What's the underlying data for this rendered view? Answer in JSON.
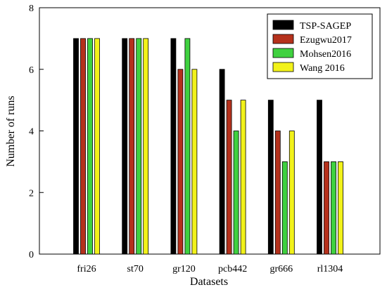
{
  "chart_data": {
    "type": "bar",
    "title": "",
    "xlabel": "Datasets",
    "ylabel": "Number of runs",
    "ylim": [
      0,
      8
    ],
    "yticks": [
      0,
      2,
      4,
      6,
      8
    ],
    "grid": false,
    "legend_position": "top-right",
    "categories": [
      "fri26",
      "st70",
      "gr120",
      "pcb442",
      "gr666",
      "rl1304"
    ],
    "series": [
      {
        "name": "TSP-SAGEP",
        "color": "#000000",
        "values": [
          7,
          7,
          7,
          6,
          5,
          5
        ]
      },
      {
        "name": "Ezugwu2017",
        "color": "#b5311c",
        "values": [
          7,
          7,
          6,
          5,
          4,
          3
        ]
      },
      {
        "name": "Mohsen2016",
        "color": "#3fd13f",
        "values": [
          7,
          7,
          7,
          4,
          3,
          3
        ]
      },
      {
        "name": "Wang 2016",
        "color": "#f2f21a",
        "values": [
          7,
          7,
          6,
          5,
          4,
          3
        ]
      }
    ]
  }
}
